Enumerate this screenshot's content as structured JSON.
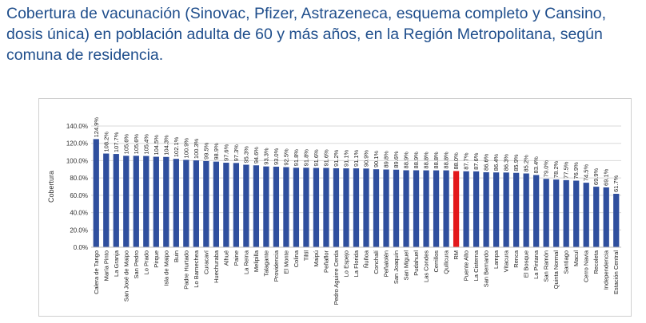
{
  "page": {
    "title": "Cobertura de vacunación (Sinovac, Pfizer, Astrazeneca, esquema completo y Cansino, dosis única) en población adulta de 60 y más años, en la Región Metropolitana, según comuna de residencia."
  },
  "chart_data": {
    "type": "bar",
    "title": "",
    "xlabel": "",
    "ylabel": "Cobertura",
    "ylim": [
      0,
      140
    ],
    "yticks": [
      0,
      20,
      40,
      60,
      80,
      100,
      120,
      140
    ],
    "ytick_labels": [
      "0.0%",
      "20.0%",
      "40.0%",
      "60.0%",
      "80.0%",
      "100.0%",
      "120.0%",
      "140.0%"
    ],
    "grid": true,
    "legend": "none",
    "bar_color": "#2f4f9e",
    "highlight_color": "#e3181b",
    "highlight_category": "RM",
    "categories": [
      "Calera de Tango",
      "María Pinto",
      "La Granja",
      "San José de Maipo",
      "San Pedro",
      "Lo Prado",
      "Pirque",
      "Isla de Maipo",
      "Buin",
      "Padre Hurtado",
      "Lo Barnechea",
      "Curacaví",
      "Huechuraba",
      "Alhué",
      "Paine",
      "La Reina",
      "Melipilla",
      "Talagante",
      "Providencia",
      "El Monte",
      "Colina",
      "Tiltil",
      "Maipú",
      "Peñaflor",
      "Pedro Aguirre Cerda",
      "Lo Espejo",
      "La Florida",
      "Ñuñoa",
      "Conchalí",
      "Peñalolén",
      "San Joaquín",
      "San Miguel",
      "Pudahuel",
      "Las Condes",
      "Cerrillos",
      "Quilicura",
      "RM",
      "Puente Alto",
      "La Cisterna",
      "San Bernardo",
      "Lampa",
      "Vitacura",
      "Renca",
      "El Bosque",
      "La Pintana",
      "San Ramón",
      "Quinta Normal",
      "Santiago",
      "Macul",
      "Cerro Navia",
      "Recoleta",
      "Independencia",
      "Estación Central"
    ],
    "values": [
      124.9,
      108.2,
      107.7,
      105.6,
      105.6,
      105.4,
      104.5,
      104.3,
      102.1,
      100.9,
      100.3,
      99.5,
      98.9,
      97.6,
      97.3,
      95.3,
      94.6,
      93.3,
      93.0,
      92.5,
      91.8,
      91.8,
      91.6,
      91.6,
      91.2,
      91.1,
      91.1,
      90.9,
      90.1,
      89.8,
      89.6,
      88.9,
      88.9,
      88.8,
      88.8,
      88.8,
      88.0,
      87.7,
      87.6,
      86.6,
      86.4,
      86.3,
      85.9,
      85.2,
      83.4,
      79.0,
      78.2,
      77.5,
      76.9,
      74.5,
      69.9,
      69.1,
      61.7
    ],
    "value_labels": [
      "124.9%",
      "108.2%",
      "107.7%",
      "105.6%",
      "105.6%",
      "105.4%",
      "104.5%",
      "104.3%",
      "102.1%",
      "100.9%",
      "100.3%",
      "99.5%",
      "98.9%",
      "97.6%",
      "97.3%",
      "95.3%",
      "94.6%",
      "93.3%",
      "93.0%",
      "92.5%",
      "91.8%",
      "91.8%",
      "91.6%",
      "91.6%",
      "91.2%",
      "91.1%",
      "91.1%",
      "90.9%",
      "90.1%",
      "89.8%",
      "89.6%",
      "88.9%",
      "88.9%",
      "88.8%",
      "88.8%",
      "88.8%",
      "88.0%",
      "87.7%",
      "87.6%",
      "86.6%",
      "86.4%",
      "86.3%",
      "85.9%",
      "85.2%",
      "83.4%",
      "79.0%",
      "78.2%",
      "77.5%",
      "76.9%",
      "74.5%",
      "69.9%",
      "69.1%",
      "61.7%"
    ]
  }
}
